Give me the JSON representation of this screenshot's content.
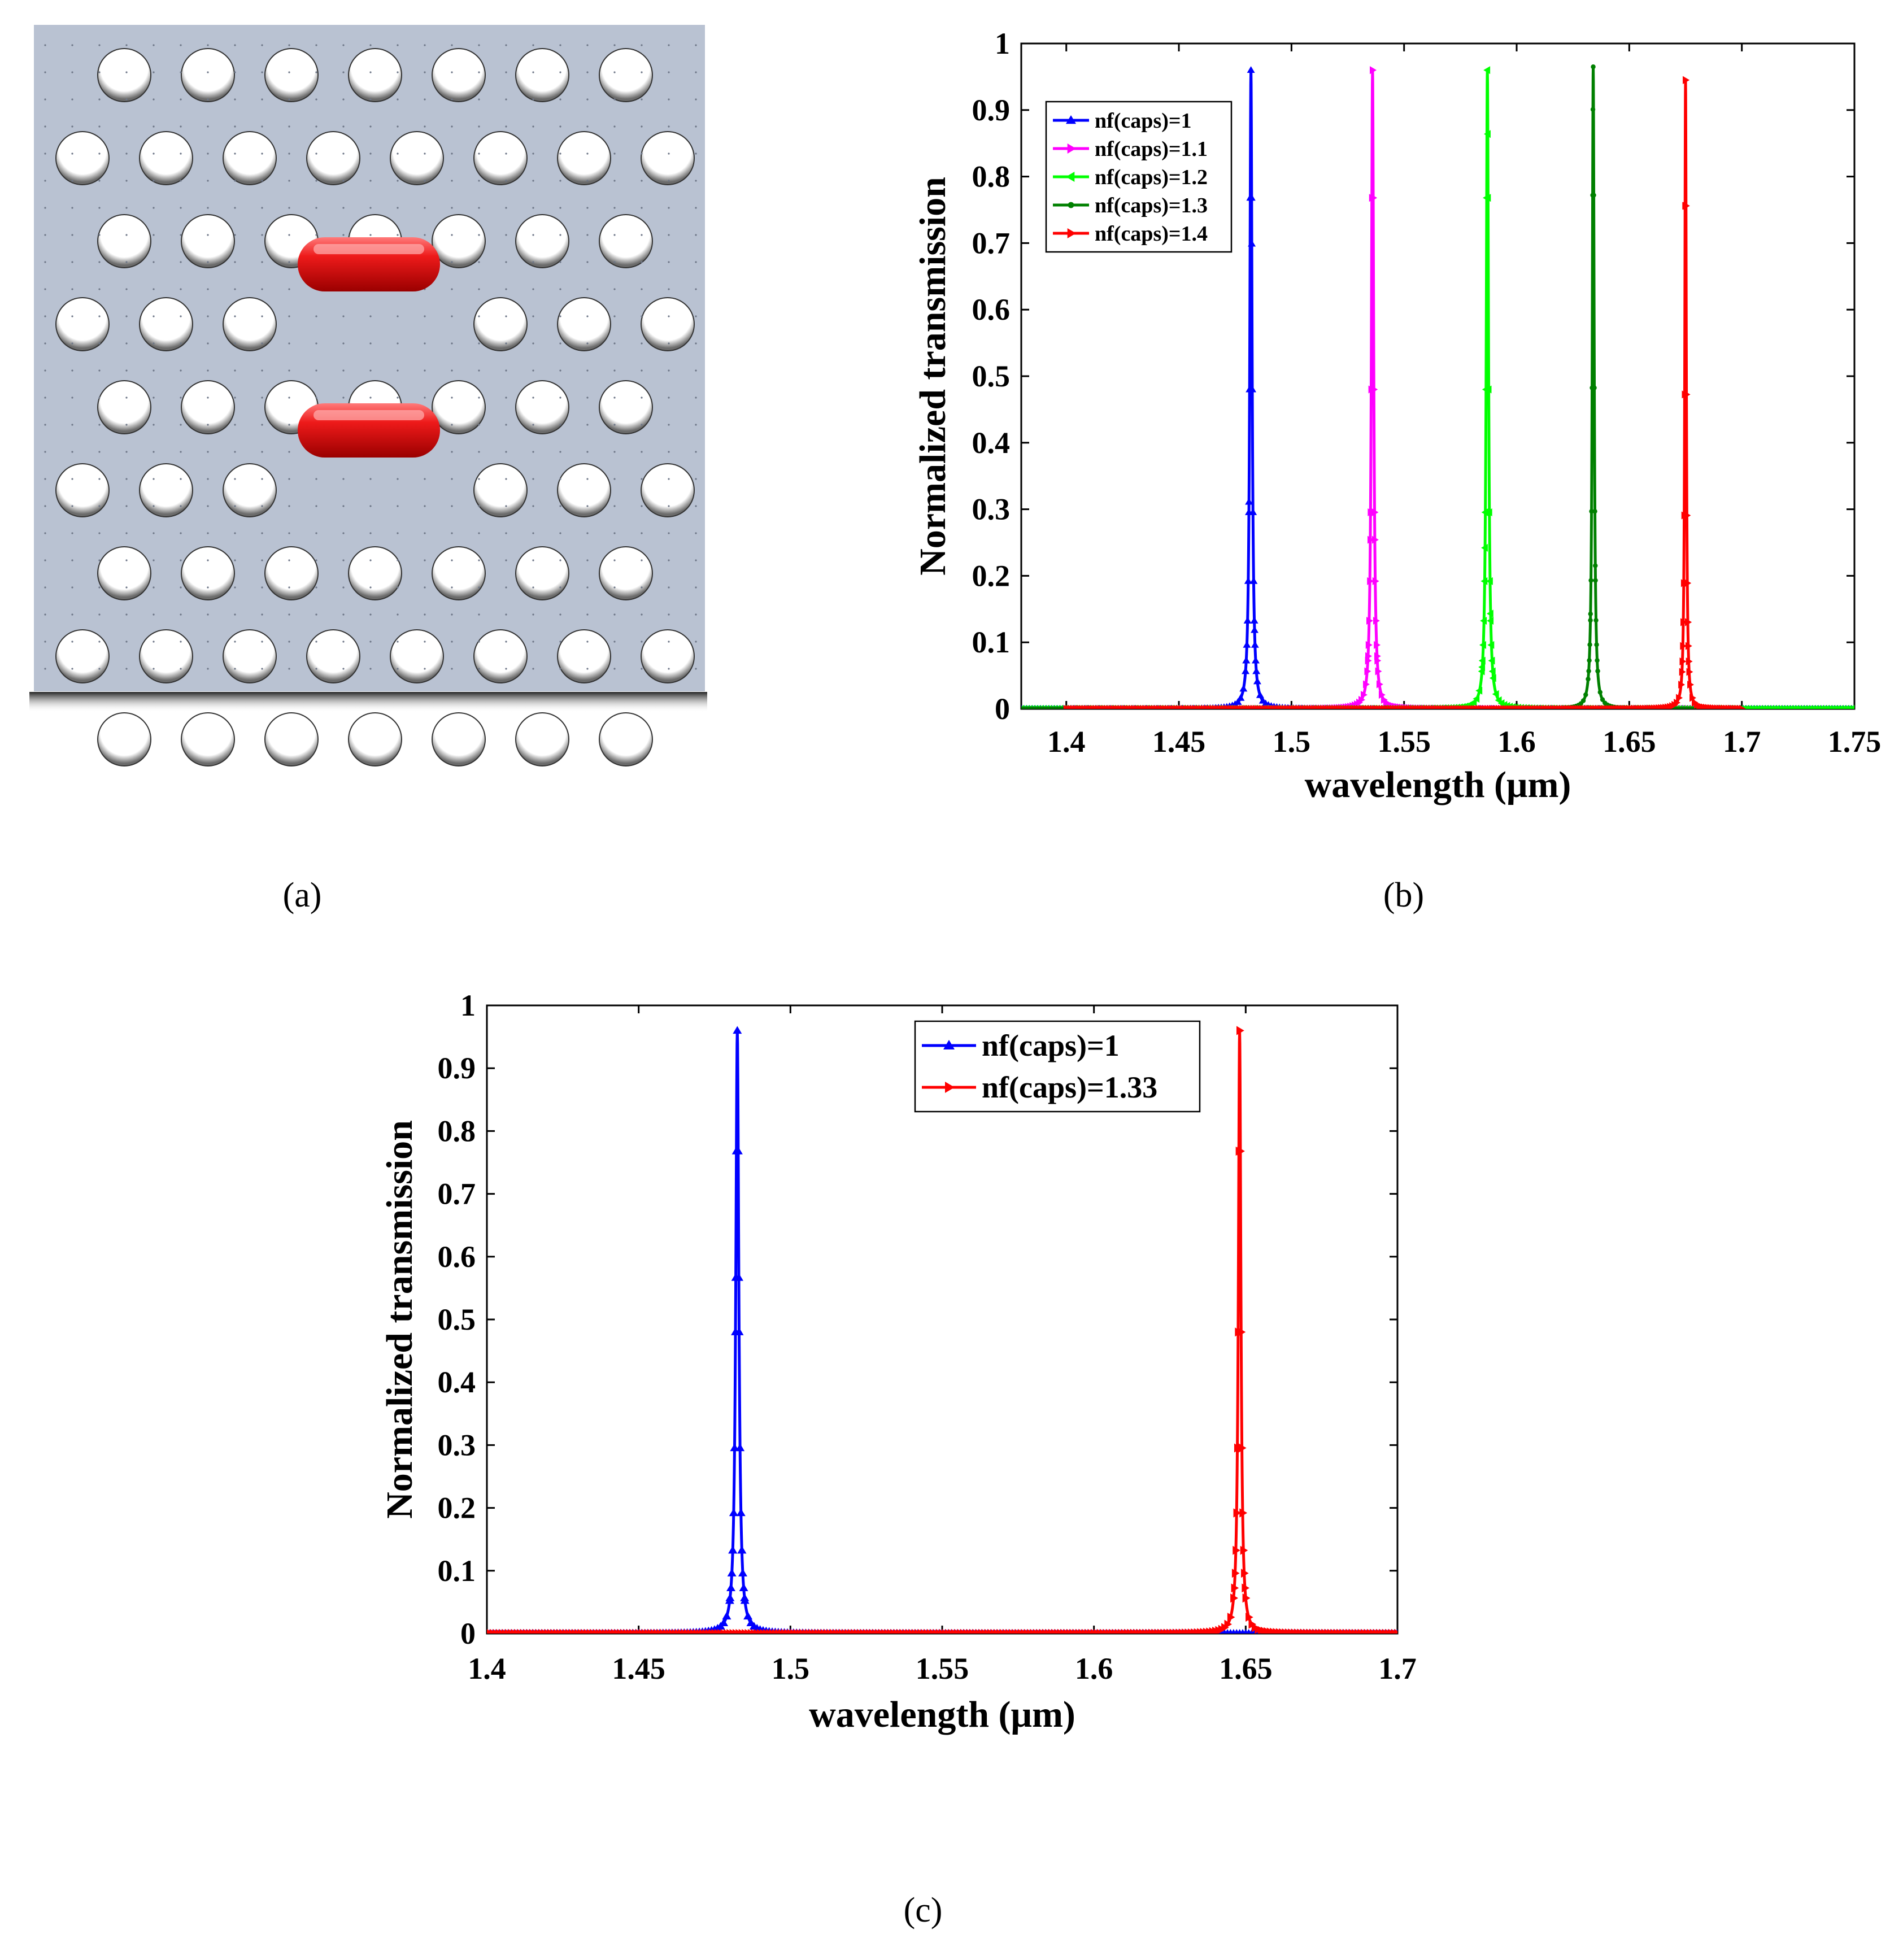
{
  "panel_labels": {
    "a": "(a)",
    "b": "(b)",
    "c": "(c)"
  },
  "colors": {
    "slab": "#b9c2d2",
    "hole": "#ffffff",
    "capsule": "#ee1a1a"
  },
  "chart_data": [
    {
      "id": "b",
      "type": "line",
      "xlabel": "wavelength (μm)",
      "ylabel": "Normalized transmission",
      "xlim": [
        1.38,
        1.75
      ],
      "ylim": [
        0,
        1
      ],
      "xticks": [
        1.4,
        1.45,
        1.5,
        1.55,
        1.6,
        1.65,
        1.7,
        1.75
      ],
      "xtick_labels": [
        "1.4",
        "1.45",
        "1.5",
        "1.55",
        "1.6",
        "1.65",
        "1.7",
        "1.75"
      ],
      "yticks": [
        0,
        0.1,
        0.2,
        0.3,
        0.4,
        0.5,
        0.6,
        0.7,
        0.8,
        0.9,
        1
      ],
      "ytick_labels": [
        "0",
        "0.1",
        "0.2",
        "0.3",
        "0.4",
        "0.5",
        "0.6",
        "0.7",
        "0.8",
        "0.9",
        "1"
      ],
      "legend_position": "top-left",
      "series": [
        {
          "name": "nf(caps)=1",
          "color": "#0000ff",
          "marker": "triangle-up",
          "peak_x": 1.482,
          "peak_y": 0.96,
          "width": 0.0006,
          "x_range": [
            1.38,
            1.75
          ]
        },
        {
          "name": "nf(caps)=1.1",
          "color": "#ff00ff",
          "marker": "triangle-right",
          "peak_x": 1.536,
          "peak_y": 0.96,
          "width": 0.0006,
          "x_range": [
            1.4,
            1.7
          ]
        },
        {
          "name": "nf(caps)=1.2",
          "color": "#00ff00",
          "marker": "triangle-left",
          "peak_x": 1.587,
          "peak_y": 0.96,
          "width": 0.0006,
          "x_range": [
            1.38,
            1.75
          ]
        },
        {
          "name": "nf(caps)=1.3",
          "color": "#008000",
          "marker": "circle",
          "peak_x": 1.634,
          "peak_y": 0.965,
          "width": 0.0005,
          "x_range": [
            1.38,
            1.7
          ]
        },
        {
          "name": "nf(caps)=1.4",
          "color": "#ff0000",
          "marker": "triangle-right",
          "peak_x": 1.675,
          "peak_y": 0.945,
          "width": 0.0004,
          "x_range": [
            1.4,
            1.7
          ]
        }
      ]
    },
    {
      "id": "c",
      "type": "line",
      "xlabel": "wavelength (μm)",
      "ylabel": "Normalized transmission",
      "xlim": [
        1.4,
        1.7
      ],
      "ylim": [
        0,
        1
      ],
      "xticks": [
        1.4,
        1.45,
        1.5,
        1.55,
        1.6,
        1.65,
        1.7
      ],
      "xtick_labels": [
        "1.4",
        "1.45",
        "1.5",
        "1.55",
        "1.6",
        "1.65",
        "1.7"
      ],
      "yticks": [
        0,
        0.1,
        0.2,
        0.3,
        0.4,
        0.5,
        0.6,
        0.7,
        0.8,
        0.9,
        1
      ],
      "ytick_labels": [
        "0",
        "0.1",
        "0.2",
        "0.3",
        "0.4",
        "0.5",
        "0.6",
        "0.7",
        "0.8",
        "0.9",
        "1"
      ],
      "legend_position": "top-right",
      "series": [
        {
          "name": "nf(caps)=1",
          "color": "#0000ff",
          "marker": "triangle-up",
          "peak_x": 1.4825,
          "peak_y": 0.96,
          "width": 0.0006,
          "x_range": [
            1.4,
            1.7
          ]
        },
        {
          "name": "nf(caps)=1.33",
          "color": "#ff0000",
          "marker": "triangle-right",
          "peak_x": 1.648,
          "peak_y": 0.96,
          "width": 0.0005,
          "x_range": [
            1.4,
            1.7
          ]
        }
      ]
    }
  ]
}
